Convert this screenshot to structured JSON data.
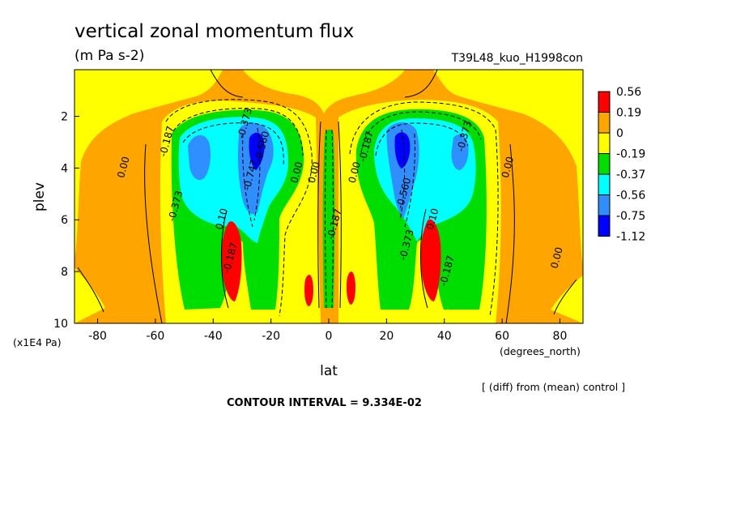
{
  "chart_data": {
    "type": "heatmap",
    "title": "vertical zonal momentum flux",
    "subtitle": "(m Pa s-2)",
    "run_label": "T39L48_kuo_H1998con",
    "xlabel": "lat",
    "x_unit": "(degrees_north)",
    "ylabel": "plev",
    "y_unit": "(x1E4 Pa)",
    "xlim": [
      -88,
      88
    ],
    "ylim": [
      10,
      0.2
    ],
    "x_ticks": [
      -80,
      -60,
      -40,
      -20,
      0,
      20,
      40,
      60,
      80
    ],
    "y_ticks": [
      2,
      4,
      6,
      8,
      10
    ],
    "contour_interval_text": "CONTOUR INTERVAL = 9.334E-02",
    "note": "[ (diff) from (mean) control ]",
    "colorbar": {
      "labels": [
        "0.56",
        "0.19",
        "0",
        "-0.19",
        "-0.37",
        "-0.56",
        "-0.75",
        "-1.12"
      ],
      "colors": [
        "#ff0000",
        "#ffa500",
        "#ffff00",
        "#00dd00",
        "#00ffff",
        "#2f8fff",
        "#0000ff"
      ]
    },
    "contour_labels": [
      {
        "text": "0.00",
        "lat": -70,
        "plev": 4.0
      },
      {
        "text": "-0.187",
        "lat": -55,
        "plev": 3.0
      },
      {
        "text": "-0.373",
        "lat": -52,
        "plev": 5.5
      },
      {
        "text": "-0.373",
        "lat": -28,
        "plev": 2.3
      },
      {
        "text": "-0.560",
        "lat": -22,
        "plev": 3.2
      },
      {
        "text": "-0.747",
        "lat": -26,
        "plev": 4.3
      },
      {
        "text": "0.10",
        "lat": -36,
        "plev": 6.0
      },
      {
        "text": "-0.187",
        "lat": -33,
        "plev": 7.5
      },
      {
        "text": "0.00",
        "lat": -10,
        "plev": 4.2
      },
      {
        "text": "0.00",
        "lat": -4,
        "plev": 4.2
      },
      {
        "text": "0.00",
        "lat": 10,
        "plev": 4.2
      },
      {
        "text": "-0.187",
        "lat": 3,
        "plev": 6.2
      },
      {
        "text": "-0.187",
        "lat": 14,
        "plev": 3.2
      },
      {
        "text": "-0.373",
        "lat": 48,
        "plev": 2.8
      },
      {
        "text": "-0.560",
        "lat": 27,
        "plev": 5.0
      },
      {
        "text": "-0.373",
        "lat": 28,
        "plev": 7.0
      },
      {
        "text": "0.10",
        "lat": 37,
        "plev": 6.0
      },
      {
        "text": "-0.187",
        "lat": 42,
        "plev": 8.0
      },
      {
        "text": "0.00",
        "lat": 63,
        "plev": 4.0
      },
      {
        "text": "0.00",
        "lat": 80,
        "plev": 7.5
      }
    ]
  }
}
